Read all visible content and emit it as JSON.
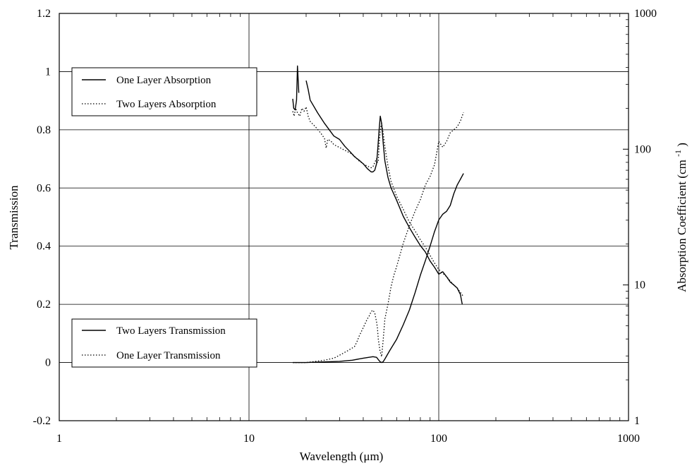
{
  "chart_data": {
    "type": "line",
    "xlabel": "Wavelength (μm)",
    "ylabel_left": "Transmission",
    "ylabel_right_main": "Absorption Coefficient (cm",
    "ylabel_right_sup": "-1",
    "ylabel_right_close": ")",
    "x_scale": "log",
    "xlim": [
      1,
      1000
    ],
    "ylim_left": [
      -0.2,
      1.2
    ],
    "ylim_right": [
      1,
      1000
    ],
    "y_right_scale": "log",
    "grid": true,
    "x_ticks": [
      1,
      10,
      100,
      1000
    ],
    "x_tick_labels": [
      "1",
      "10",
      "100",
      "1000"
    ],
    "y_left_ticks": [
      -0.2,
      0,
      0.2,
      0.4,
      0.6,
      0.8,
      1,
      1.2
    ],
    "y_left_tick_labels": [
      "-0.2",
      "0",
      "0.2",
      "0.4",
      "0.6",
      "0.8",
      "1",
      "1.2"
    ],
    "y_right_ticks": [
      1,
      10,
      100,
      1000
    ],
    "y_right_tick_labels": [
      "1",
      "10",
      "100",
      "1000"
    ],
    "legends": [
      {
        "position": "upper-left",
        "entries": [
          {
            "label": "One Layer Absorption",
            "style": "solid"
          },
          {
            "label": "Two Layers Absorption",
            "style": "dotted"
          }
        ]
      },
      {
        "position": "lower-left",
        "entries": [
          {
            "label": "Two Layers Transmission",
            "style": "solid"
          },
          {
            "label": "One Layer Transmission",
            "style": "dotted"
          }
        ]
      }
    ],
    "series": [
      {
        "name": "One Layer Absorption",
        "axis": "right",
        "style": "solid",
        "x": [
          17,
          17.2,
          17.5,
          17.8,
          18,
          18.3
        ],
        "y": [
          235,
          200,
          195,
          230,
          410,
          260
        ]
      },
      {
        "name": "One Layer Absorption",
        "axis": "right",
        "style": "solid",
        "x": [
          20,
          20.5,
          21,
          23,
          25,
          28,
          30,
          32,
          34,
          36,
          38,
          40,
          42,
          44,
          45,
          46,
          47,
          47.7,
          48.5,
          49.2,
          50,
          51,
          52,
          54,
          56,
          60,
          65,
          70,
          75,
          80,
          85,
          90,
          95,
          100,
          105,
          110,
          115,
          120,
          125,
          130,
          133
        ],
        "y": [
          320,
          275,
          230,
          185,
          155,
          125,
          118,
          105,
          96,
          88,
          83,
          78,
          72,
          68,
          68,
          70,
          78,
          100,
          140,
          175,
          155,
          110,
          82,
          62,
          52,
          42,
          32,
          26.5,
          22.5,
          19.5,
          17.5,
          15,
          13.5,
          12,
          12.5,
          11.5,
          10.5,
          10,
          9.5,
          8.5,
          7.2
        ]
      },
      {
        "name": "Two Layers Absorption",
        "axis": "right",
        "style": "dotted",
        "x": [
          17,
          17.3,
          17.6,
          18,
          18.5,
          19,
          19.5,
          20,
          20.5,
          21,
          22,
          23,
          24,
          25,
          25.5,
          26,
          27,
          28,
          30,
          32,
          35,
          38,
          40,
          42,
          44,
          45,
          46,
          47,
          47.5,
          48,
          48.5,
          49,
          49.5,
          50,
          51,
          52,
          54,
          56,
          60,
          65,
          70,
          75,
          80,
          85,
          90,
          95,
          100,
          105,
          110,
          115,
          120,
          125,
          130,
          135
        ],
        "y": [
          190,
          175,
          200,
          185,
          175,
          200,
          190,
          205,
          175,
          160,
          150,
          140,
          130,
          120,
          102,
          118,
          115,
          108,
          103,
          98,
          92,
          82,
          78,
          75,
          73,
          74,
          80,
          85,
          80,
          82,
          110,
          130,
          145,
          155,
          130,
          105,
          75,
          58,
          45,
          36,
          29,
          25,
          21.5,
          19,
          16.5,
          14.5,
          13,
          12.2,
          11.5,
          10.7,
          10,
          9.5,
          8.8,
          8.2
        ]
      },
      {
        "name": "Two Layers Transmission",
        "axis": "left",
        "style": "solid",
        "x": [
          17,
          20,
          25,
          30,
          35,
          40,
          45,
          47,
          48,
          49,
          50,
          51,
          52,
          55,
          60,
          65,
          70,
          75,
          80,
          85,
          90,
          95,
          100,
          105,
          110,
          115,
          120,
          125,
          130,
          135
        ],
        "y": [
          0,
          0,
          0.002,
          0.004,
          0.008,
          0.015,
          0.02,
          0.018,
          0.01,
          0.003,
          0,
          0.003,
          0.012,
          0.04,
          0.08,
          0.13,
          0.18,
          0.24,
          0.3,
          0.35,
          0.4,
          0.45,
          0.49,
          0.51,
          0.52,
          0.54,
          0.58,
          0.61,
          0.63,
          0.65
        ]
      },
      {
        "name": "One Layer Transmission",
        "axis": "left",
        "style": "dotted",
        "x": [
          17,
          20,
          25,
          28,
          30,
          33,
          35,
          36,
          37,
          38,
          40,
          42,
          43,
          44,
          45,
          46,
          47,
          47.5,
          48,
          49,
          50,
          51,
          52,
          54,
          56,
          58,
          60,
          65,
          70,
          75,
          80,
          85,
          90,
          95,
          100,
          105,
          110,
          115,
          120,
          125,
          130,
          135
        ],
        "y": [
          0,
          0,
          0.008,
          0.015,
          0.025,
          0.04,
          0.05,
          0.055,
          0.07,
          0.09,
          0.12,
          0.15,
          0.16,
          0.175,
          0.18,
          0.17,
          0.14,
          0.12,
          0.08,
          0.04,
          0.02,
          0.08,
          0.15,
          0.2,
          0.26,
          0.3,
          0.33,
          0.41,
          0.47,
          0.52,
          0.56,
          0.61,
          0.64,
          0.68,
          0.76,
          0.74,
          0.76,
          0.79,
          0.8,
          0.81,
          0.83,
          0.86
        ]
      }
    ]
  }
}
